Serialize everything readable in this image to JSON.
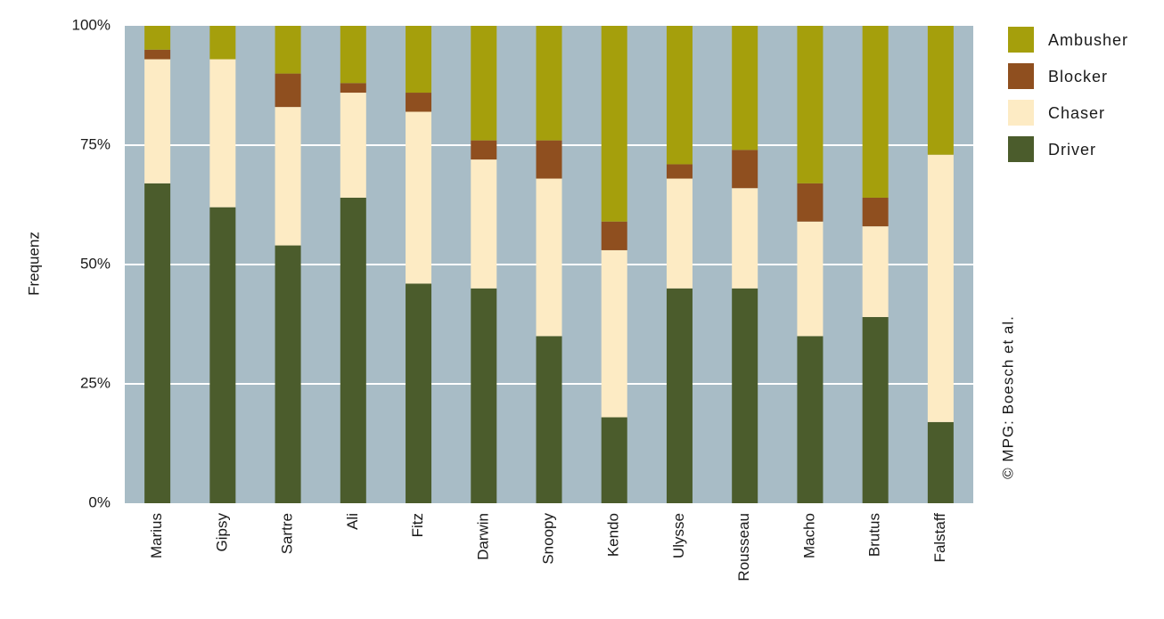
{
  "chart_data": {
    "type": "bar",
    "stacked": true,
    "ylabel": "Frequenz",
    "ylim": [
      0,
      100
    ],
    "yticks": [
      "0%",
      "25%",
      "50%",
      "75%",
      "100%"
    ],
    "grid": true,
    "legend_position": "top-right",
    "categories": [
      "Marius",
      "Gipsy",
      "Sartre",
      "Ali",
      "Fitz",
      "Darwin",
      "Snoopy",
      "Kendo",
      "Ulysse",
      "Rousseau",
      "Macho",
      "Brutus",
      "Falstaff"
    ],
    "series": [
      {
        "name": "Driver",
        "color": "#4b5c2c",
        "values": [
          67,
          62,
          54,
          64,
          46,
          45,
          35,
          18,
          45,
          45,
          35,
          39,
          17
        ]
      },
      {
        "name": "Chaser",
        "color": "#fdebc4",
        "values": [
          26,
          31,
          29,
          22,
          36,
          27,
          33,
          35,
          23,
          21,
          24,
          19,
          56
        ]
      },
      {
        "name": "Blocker",
        "color": "#8f4f1f",
        "values": [
          2,
          0,
          7,
          2,
          4,
          4,
          8,
          6,
          3,
          8,
          8,
          6,
          0
        ]
      },
      {
        "name": "Ambusher",
        "color": "#a59f0c",
        "values": [
          5,
          7,
          10,
          12,
          14,
          24,
          24,
          41,
          29,
          26,
          33,
          36,
          27
        ]
      }
    ],
    "legend_order": [
      "Ambusher",
      "Blocker",
      "Chaser",
      "Driver"
    ]
  },
  "credit": "© MPG: Boesch et al.",
  "colors": {
    "plot_background": "#a8bcc6",
    "gridline": "#ffffff"
  }
}
